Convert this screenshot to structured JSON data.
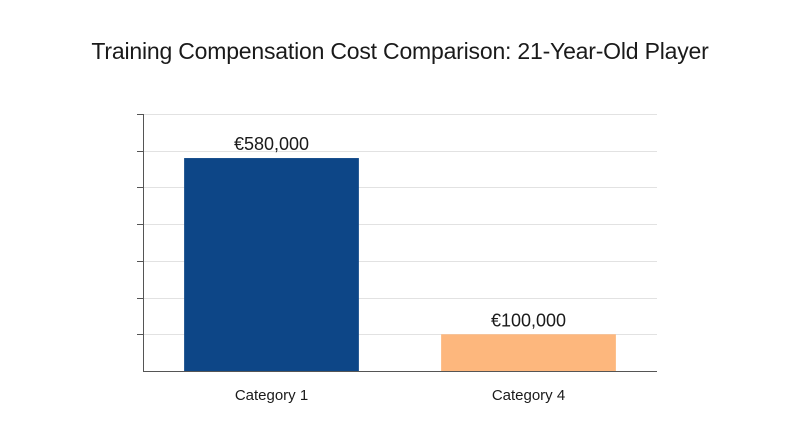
{
  "chart_data": {
    "type": "bar",
    "title": "Training Compensation Cost Comparison: 21-Year-Old Player",
    "categories": [
      "Category 1",
      "Category 4"
    ],
    "values": [
      580000,
      100000
    ],
    "data_labels": [
      "€580,000",
      "€100,000"
    ],
    "colors": [
      "#0d4687",
      "#fdb77d"
    ],
    "xlabel": "",
    "ylabel": "",
    "ylim": [
      0,
      700000
    ],
    "grid": true,
    "show_y_tick_labels": false,
    "legend": "none"
  }
}
